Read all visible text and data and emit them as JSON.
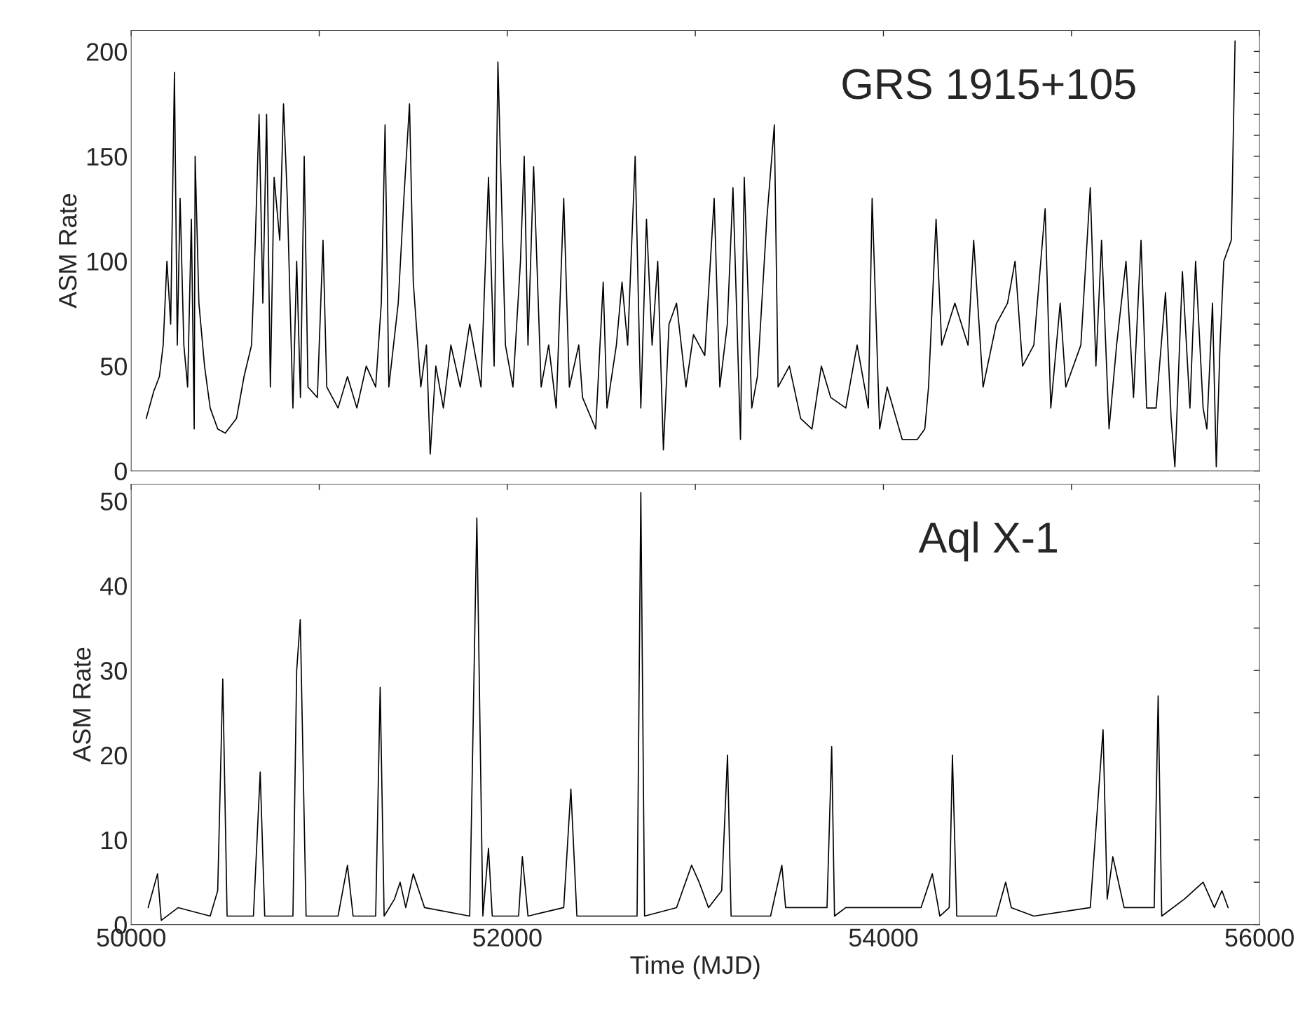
{
  "chart_data": [
    {
      "type": "line",
      "ylabel": "ASM Rate",
      "annotations": [
        "GRS 1915+105"
      ],
      "grid": false,
      "tick_labels": "y",
      "xlim": [
        50000,
        56000
      ],
      "xticks": [
        50000,
        {
          "value": 51000,
          "label": null
        },
        52000,
        {
          "value": 53000,
          "label": null
        },
        54000,
        {
          "value": 55000,
          "label": null
        },
        56000
      ],
      "ylim": [
        0,
        210
      ],
      "yticks": [
        0,
        {
          "value": 10,
          "label": null
        },
        {
          "value": 20,
          "label": null
        },
        {
          "value": 30,
          "label": null
        },
        {
          "value": 40,
          "label": null
        },
        50,
        {
          "value": 60,
          "label": null
        },
        {
          "value": 70,
          "label": null
        },
        {
          "value": 80,
          "label": null
        },
        {
          "value": 90,
          "label": null
        },
        100,
        {
          "value": 110,
          "label": null
        },
        {
          "value": 120,
          "label": null
        },
        {
          "value": 130,
          "label": null
        },
        {
          "value": 140,
          "label": null
        },
        150,
        {
          "value": 160,
          "label": null
        },
        {
          "value": 170,
          "label": null
        },
        {
          "value": 180,
          "label": null
        },
        {
          "value": 190,
          "label": null
        },
        200
      ],
      "series": [
        {
          "color": "#000000",
          "x": [
            50080,
            50120,
            50150,
            50170,
            50190,
            50210,
            50230,
            50245,
            50260,
            50280,
            50300,
            50320,
            50335,
            50340,
            50360,
            50390,
            50420,
            50460,
            50500,
            50560,
            50600,
            50640,
            50660,
            50680,
            50700,
            50720,
            50740,
            50760,
            50790,
            50810,
            50830,
            50860,
            50880,
            50900,
            50920,
            50940,
            50990,
            51020,
            51040,
            51100,
            51150,
            51200,
            51250,
            51300,
            51330,
            51350,
            51370,
            51420,
            51450,
            51480,
            51500,
            51540,
            51570,
            51590,
            51620,
            51660,
            51700,
            51750,
            51800,
            51860,
            51900,
            51930,
            51950,
            51990,
            52030,
            52070,
            52090,
            52110,
            52140,
            52180,
            52220,
            52260,
            52300,
            52330,
            52380,
            52400,
            52470,
            52510,
            52530,
            52580,
            52610,
            52640,
            52680,
            52710,
            52740,
            52770,
            52800,
            52830,
            52860,
            52900,
            52950,
            52990,
            53050,
            53100,
            53130,
            53170,
            53200,
            53240,
            53260,
            53300,
            53330,
            53380,
            53420,
            53440,
            53500,
            53560,
            53620,
            53670,
            53720,
            53800,
            53860,
            53920,
            53940,
            53980,
            54020,
            54100,
            54180,
            54220,
            54240,
            54280,
            54310,
            54380,
            54450,
            54480,
            54530,
            54600,
            54660,
            54700,
            54740,
            54800,
            54860,
            54890,
            54940,
            54970,
            55050,
            55100,
            55130,
            55160,
            55200,
            55240,
            55290,
            55330,
            55370,
            55400,
            55450,
            55500,
            55530,
            55550,
            55590,
            55630,
            55660,
            55700,
            55720,
            55750,
            55770,
            55790,
            55810,
            55850,
            55870
          ],
          "values": [
            25,
            38,
            45,
            60,
            100,
            70,
            190,
            60,
            130,
            60,
            40,
            120,
            20,
            150,
            80,
            50,
            30,
            20,
            18,
            25,
            45,
            60,
            110,
            170,
            80,
            170,
            40,
            140,
            110,
            175,
            130,
            30,
            100,
            35,
            150,
            40,
            35,
            110,
            40,
            30,
            45,
            30,
            50,
            40,
            80,
            165,
            40,
            80,
            130,
            175,
            90,
            40,
            60,
            8,
            50,
            30,
            60,
            40,
            70,
            40,
            140,
            50,
            195,
            60,
            40,
            100,
            150,
            60,
            145,
            40,
            60,
            30,
            130,
            40,
            60,
            35,
            20,
            90,
            30,
            60,
            90,
            60,
            150,
            30,
            120,
            60,
            100,
            10,
            70,
            80,
            40,
            65,
            55,
            130,
            40,
            70,
            135,
            15,
            140,
            30,
            45,
            120,
            165,
            40,
            50,
            25,
            20,
            50,
            35,
            30,
            60,
            30,
            130,
            20,
            40,
            15,
            15,
            20,
            40,
            120,
            60,
            80,
            60,
            110,
            40,
            70,
            80,
            100,
            50,
            60,
            125,
            30,
            80,
            40,
            60,
            135,
            50,
            110,
            20,
            60,
            100,
            35,
            110,
            30,
            30,
            85,
            25,
            2,
            95,
            30,
            100,
            30,
            20,
            80,
            2,
            60,
            100,
            110,
            205
          ]
        }
      ]
    },
    {
      "type": "line",
      "ylabel": "ASM Rate",
      "xlabel": "Time (MJD)",
      "annotations": [
        "Aql X-1"
      ],
      "grid": false,
      "xlim": [
        50000,
        56000
      ],
      "xticks": [
        50000,
        {
          "value": 51000,
          "label": null
        },
        52000,
        {
          "value": 53000,
          "label": null
        },
        54000,
        {
          "value": 55000,
          "label": null
        },
        56000
      ],
      "ylim": [
        0,
        52
      ],
      "yticks": [
        0,
        {
          "value": 5,
          "label": null
        },
        10,
        {
          "value": 15,
          "label": null
        },
        20,
        {
          "value": 25,
          "label": null
        },
        30,
        {
          "value": 35,
          "label": null
        },
        40,
        {
          "value": 45,
          "label": null
        },
        50
      ],
      "series": [
        {
          "color": "#000000",
          "x": [
            50090,
            50140,
            50160,
            50250,
            50420,
            50460,
            50487,
            50510,
            50650,
            50686,
            50710,
            50860,
            50880,
            50899,
            50930,
            51100,
            51150,
            51180,
            51300,
            51324,
            51345,
            51400,
            51430,
            51460,
            51500,
            51560,
            51800,
            51838,
            51870,
            51900,
            51920,
            52060,
            52080,
            52110,
            52300,
            52338,
            52370,
            52560,
            52690,
            52710,
            52730,
            52900,
            52980,
            53020,
            53070,
            53140,
            53171,
            53190,
            53400,
            53460,
            53480,
            53700,
            53725,
            53740,
            53800,
            54200,
            54260,
            54300,
            54350,
            54367,
            54390,
            54600,
            54650,
            54680,
            54800,
            55100,
            55168,
            55190,
            55220,
            55280,
            55440,
            55461,
            55480,
            55600,
            55700,
            55760,
            55800,
            55833
          ],
          "values": [
            2,
            6,
            0.5,
            2,
            1,
            4,
            29,
            1,
            1,
            18,
            1,
            1,
            30,
            36,
            1,
            1,
            7,
            1,
            1,
            28,
            1,
            3,
            5,
            2,
            6,
            2,
            1,
            48,
            1,
            9,
            1,
            1,
            8,
            1,
            2,
            16,
            1,
            1,
            1,
            51,
            1,
            2,
            7,
            5,
            2,
            4,
            20,
            1,
            1,
            7,
            2,
            2,
            21,
            1,
            2,
            2,
            6,
            1,
            2,
            20,
            1,
            1,
            5,
            2,
            1,
            2,
            23,
            3,
            8,
            2,
            2,
            27,
            1,
            3,
            5,
            2,
            4,
            2
          ]
        }
      ]
    }
  ]
}
